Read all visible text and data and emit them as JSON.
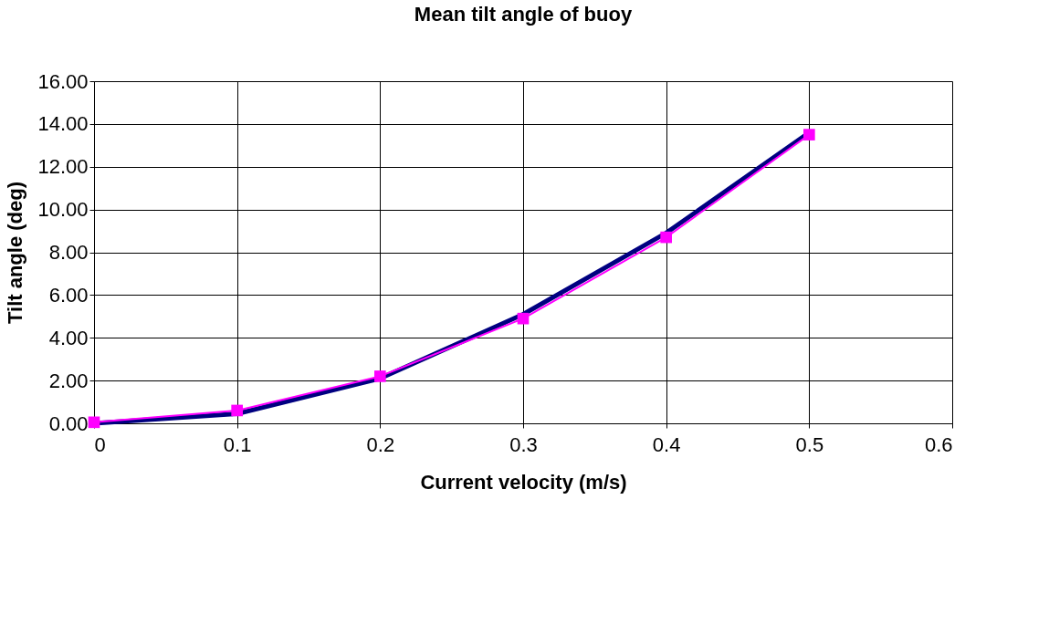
{
  "chart_data": {
    "type": "line",
    "title": "Mean tilt angle of buoy",
    "xlabel": "Current velocity (m/s)",
    "ylabel": "Tilt angle (deg)",
    "x": [
      0,
      0.1,
      0.2,
      0.3,
      0.4,
      0.5
    ],
    "series": [
      {
        "color": "#000080",
        "values": [
          0,
          0.45,
          2.1,
          5.1,
          8.9,
          13.6
        ],
        "marker": "none"
      },
      {
        "color": "#ff00ff",
        "values": [
          0.05,
          0.6,
          2.2,
          4.9,
          8.7,
          13.5
        ],
        "marker": "square"
      }
    ],
    "xlim": [
      0,
      0.6
    ],
    "xticks": [
      0,
      0.1,
      0.2,
      0.3,
      0.4,
      0.5,
      0.6
    ],
    "ylim": [
      0,
      16
    ],
    "yticks": [
      {
        "value": 0,
        "label": "0.00"
      },
      {
        "value": 2,
        "label": "2.00"
      },
      {
        "value": 4,
        "label": "4.00"
      },
      {
        "value": 6,
        "label": "6.00"
      },
      {
        "value": 8,
        "label": "8.00"
      },
      {
        "value": 10,
        "label": "10.00"
      },
      {
        "value": 12,
        "label": "12.00"
      },
      {
        "value": 14,
        "label": "14.00"
      },
      {
        "value": 16,
        "label": "16.00"
      }
    ],
    "grid": true,
    "line_style": "solid"
  }
}
